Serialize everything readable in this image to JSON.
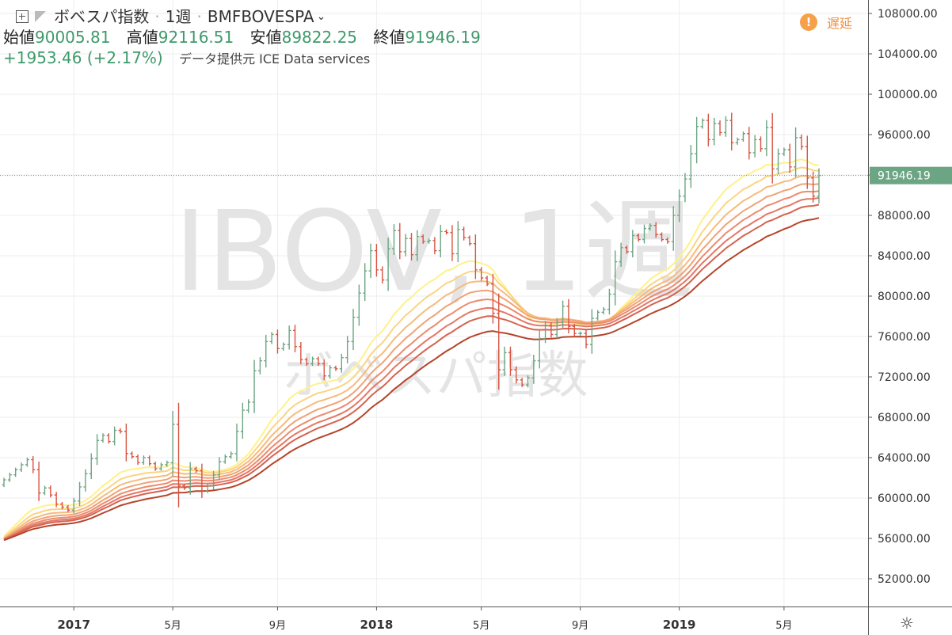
{
  "header": {
    "symbol_name": "ボベスパ指数",
    "interval": "1週",
    "ticker": "BMFBOVESPA",
    "open_label": "始値",
    "open_value": "90005.81",
    "high_label": "高値",
    "high_value": "92116.51",
    "low_label": "安値",
    "low_value": "89822.25",
    "close_label": "終値",
    "close_value": "91946.19",
    "change": "+1953.46 (+2.17%)",
    "data_source": "データ提供元 ICE Data services",
    "delay_label": "遅延"
  },
  "watermark": {
    "main": "IBOV, 1週",
    "sub": "ボベスパ指数"
  },
  "colors": {
    "up": "#6ba583",
    "down": "#d75442",
    "ribbon": [
      "#fff189",
      "#fbd482",
      "#f6bb7c",
      "#f1a275",
      "#eb8b6e",
      "#e47766",
      "#d5634f",
      "#b5452b"
    ],
    "last_price_bg": "#6ba583"
  },
  "chart_data": {
    "type": "candlestick-ohlc",
    "y_axis": {
      "ticks": [
        "52000.00",
        "56000.00",
        "60000.00",
        "64000.00",
        "68000.00",
        "72000.00",
        "76000.00",
        "80000.00",
        "84000.00",
        "88000.00",
        "92000.00",
        "96000.00",
        "100000.00",
        "104000.00",
        "108000.00"
      ],
      "ylim": [
        49500,
        110000
      ]
    },
    "x_axis": {
      "ticks": [
        {
          "label": "2017",
          "bold": true,
          "week": 12
        },
        {
          "label": "5月",
          "bold": false,
          "week": 29
        },
        {
          "label": "9月",
          "bold": false,
          "week": 47
        },
        {
          "label": "2018",
          "bold": true,
          "week": 64
        },
        {
          "label": "5月",
          "bold": false,
          "week": 82
        },
        {
          "label": "9月",
          "bold": false,
          "week": 99
        },
        {
          "label": "2019",
          "bold": true,
          "week": 116
        },
        {
          "label": "5月",
          "bold": false,
          "week": 134
        }
      ],
      "n_weeks": 141
    },
    "last_price": "91946.19",
    "last_price_value": 91946.19,
    "ohlc_closes": [
      61800,
      62300,
      62800,
      63300,
      63800,
      62800,
      60500,
      61000,
      60300,
      59400,
      59100,
      58800,
      59700,
      61100,
      62400,
      63900,
      65700,
      66200,
      65600,
      66700,
      66600,
      64400,
      64100,
      63500,
      64000,
      63400,
      62900,
      63300,
      63500,
      67300,
      61200,
      61000,
      62900,
      62700,
      60700,
      61200,
      62300,
      63600,
      64100,
      64400,
      66600,
      68700,
      69500,
      72600,
      73600,
      75500,
      76200,
      74800,
      75200,
      76600,
      75000,
      73700,
      73300,
      73800,
      73300,
      72100,
      72900,
      72800,
      73900,
      75500,
      77900,
      80300,
      82500,
      84500,
      82600,
      81600,
      84700,
      86500,
      84400,
      85700,
      84100,
      85900,
      85400,
      85500,
      84500,
      86400,
      86300,
      84200,
      86600,
      85800,
      85200,
      82600,
      81800,
      81200,
      78300,
      72700,
      74400,
      72700,
      71700,
      71200,
      71900,
      73600,
      75800,
      77100,
      76200,
      77400,
      79000,
      77000,
      76300,
      76300,
      75200,
      77800,
      78400,
      78700,
      80200,
      83400,
      84800,
      84400,
      86000,
      85600,
      86700,
      87000,
      86100,
      85600,
      85400,
      88000,
      89900,
      91600,
      94100,
      96800,
      97400,
      95500,
      97100,
      96200,
      97400,
      95200,
      95500,
      96100,
      94200,
      95500,
      94600,
      96700,
      92600,
      94100,
      94500,
      92800,
      95700,
      94800,
      91700,
      89900,
      91946.19
    ],
    "ribbon_ema_periods": [
      20,
      25,
      30,
      35,
      40,
      45,
      50,
      60
    ]
  }
}
